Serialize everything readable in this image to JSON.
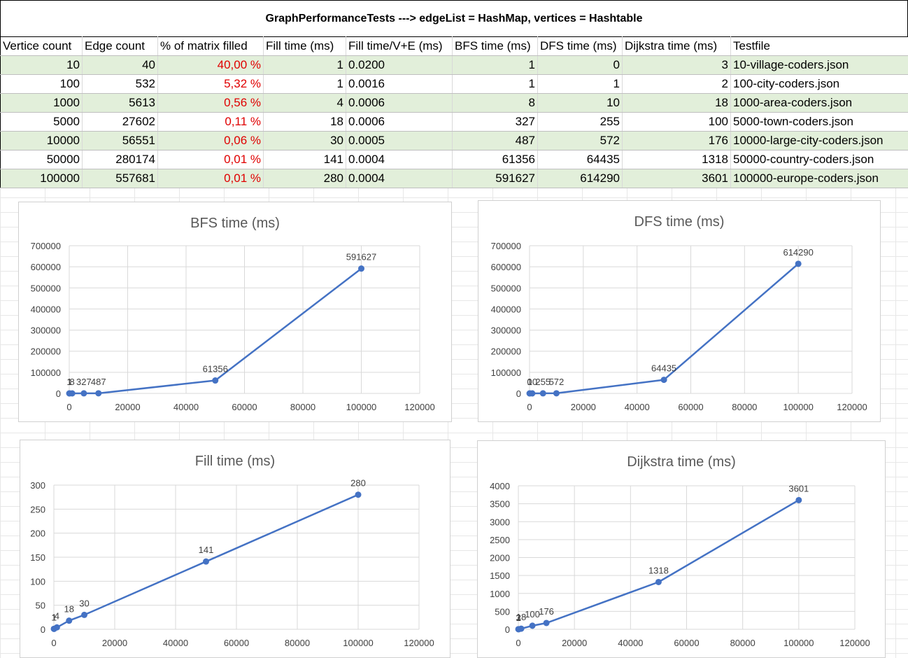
{
  "sheet": {
    "banner": "GraphPerformanceTests ---> edgeList = HashMap, vertices = Hashtable",
    "headers": [
      "Vertice count",
      "Edge count",
      "% of matrix filled",
      "Fill time (ms)",
      "Fill time/V+E (ms)",
      "BFS time (ms)",
      "DFS time (ms)",
      "Dijkstra time (ms)",
      "Testfile"
    ],
    "rows": [
      [
        "10",
        "40",
        "40,00 %",
        "1",
        "0.0200",
        "1",
        "0",
        "3",
        "10-village-coders.json"
      ],
      [
        "100",
        "532",
        "5,32 %",
        "1",
        "0.0016",
        "1",
        "1",
        "2",
        "100-city-coders.json"
      ],
      [
        "1000",
        "5613",
        "0,56 %",
        "4",
        "0.0006",
        "8",
        "10",
        "18",
        "1000-area-coders.json"
      ],
      [
        "5000",
        "27602",
        "0,11 %",
        "18",
        "0.0006",
        "327",
        "255",
        "100",
        "5000-town-coders.json"
      ],
      [
        "10000",
        "56551",
        "0,06 %",
        "30",
        "0.0005",
        "487",
        "572",
        "176",
        "10000-large-city-coders.json"
      ],
      [
        "50000",
        "280174",
        "0,01 %",
        "141",
        "0.0004",
        "61356",
        "64435",
        "1318",
        "50000-country-coders.json"
      ],
      [
        "100000",
        "557681",
        "0,01 %",
        "280",
        "0.0004",
        "591627",
        "614290",
        "3601",
        "100000-europe-coders.json"
      ]
    ],
    "colors": {
      "row_band": "#e2efda",
      "percent_text": "#e00000",
      "series": "#4472c4"
    }
  },
  "chart_data": [
    {
      "type": "scatter",
      "title": "BFS time (ms)",
      "x": [
        10,
        100,
        1000,
        5000,
        10000,
        50000,
        100000
      ],
      "y": [
        1,
        1,
        8,
        327,
        487,
        61356,
        591627
      ],
      "data_labels": [
        "1",
        "1",
        "8",
        "327",
        "487",
        "61356",
        "591627"
      ],
      "xlim": [
        0,
        120000
      ],
      "ylim": [
        0,
        700000
      ],
      "x_ticks": [
        0,
        20000,
        40000,
        60000,
        80000,
        100000,
        120000
      ],
      "y_ticks": [
        0,
        100000,
        200000,
        300000,
        400000,
        500000,
        600000,
        700000
      ],
      "grid": true,
      "lines": true
    },
    {
      "type": "scatter",
      "title": "DFS time (ms)",
      "x": [
        10,
        100,
        1000,
        5000,
        10000,
        50000,
        100000
      ],
      "y": [
        0,
        1,
        10,
        255,
        572,
        64435,
        614290
      ],
      "data_labels": [
        "0",
        "1",
        "10",
        "255",
        "572",
        "64435",
        "614290"
      ],
      "xlim": [
        0,
        120000
      ],
      "ylim": [
        0,
        700000
      ],
      "x_ticks": [
        0,
        20000,
        40000,
        60000,
        80000,
        100000,
        120000
      ],
      "y_ticks": [
        0,
        100000,
        200000,
        300000,
        400000,
        500000,
        600000,
        700000
      ],
      "grid": true,
      "lines": true
    },
    {
      "type": "scatter",
      "title": "Fill time (ms)",
      "x": [
        10,
        100,
        1000,
        5000,
        10000,
        50000,
        100000
      ],
      "y": [
        1,
        1,
        4,
        18,
        30,
        141,
        280
      ],
      "data_labels": [
        "1",
        "1",
        "4",
        "18",
        "30",
        "141",
        "280"
      ],
      "xlim": [
        0,
        120000
      ],
      "ylim": [
        0,
        300
      ],
      "x_ticks": [
        0,
        20000,
        40000,
        60000,
        80000,
        100000,
        120000
      ],
      "y_ticks": [
        0,
        50,
        100,
        150,
        200,
        250,
        300
      ],
      "grid": true,
      "lines": true
    },
    {
      "type": "scatter",
      "title": "Dijkstra time (ms)",
      "x": [
        10,
        100,
        1000,
        5000,
        10000,
        50000,
        100000
      ],
      "y": [
        3,
        2,
        18,
        100,
        176,
        1318,
        3601
      ],
      "data_labels": [
        "3",
        "2",
        "18",
        "100",
        "176",
        "1318",
        "3601"
      ],
      "xlim": [
        0,
        120000
      ],
      "ylim": [
        0,
        4000
      ],
      "x_ticks": [
        0,
        20000,
        40000,
        60000,
        80000,
        100000,
        120000
      ],
      "y_ticks": [
        0,
        500,
        1000,
        1500,
        2000,
        2500,
        3000,
        3500,
        4000
      ],
      "grid": true,
      "lines": true
    }
  ]
}
